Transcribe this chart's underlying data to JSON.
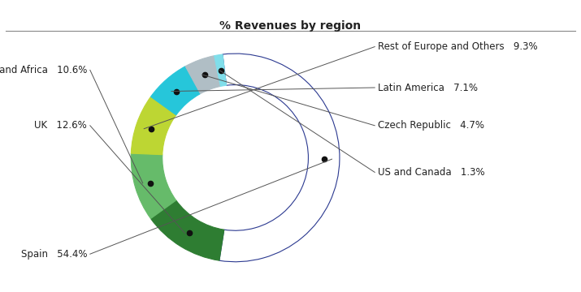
{
  "title": "% Revenues by region",
  "segments_ordered": [
    {
      "label": "Spain",
      "value": 54.4,
      "color": "#FFFFFF",
      "edge": "#2b3990"
    },
    {
      "label": "UK",
      "value": 12.6,
      "color": "#2e7d32",
      "edge": "#2e7d32"
    },
    {
      "label": "Middle East and Africa",
      "value": 10.6,
      "color": "#66bb6a",
      "edge": "#66bb6a"
    },
    {
      "label": "Rest of Europe and Others",
      "value": 9.3,
      "color": "#bdd633",
      "edge": "#bdd633"
    },
    {
      "label": "Latin America",
      "value": 7.1,
      "color": "#26c6da",
      "edge": "#26c6da"
    },
    {
      "label": "Czech Republic",
      "value": 4.7,
      "color": "#b0bec5",
      "edge": "#b0bec5"
    },
    {
      "label": "US and Canada",
      "value": 1.3,
      "color": "#80deea",
      "edge": "#80deea"
    }
  ],
  "start_angle": 97,
  "donut_width": 0.3,
  "title_fontsize": 10,
  "label_fontsize": 8.5,
  "title_color": "#222222",
  "label_color": "#222222",
  "line_color": "#555555",
  "dot_color": "#111111",
  "spain_edge": "#2b3990",
  "label_info": {
    "Spain": {
      "side": "left",
      "fy": 0.13
    },
    "Middle East and Africa": {
      "side": "left",
      "fy": 0.76
    },
    "UK": {
      "side": "left",
      "fy": 0.57
    },
    "Rest of Europe and Others": {
      "side": "right",
      "fy": 0.84
    },
    "Latin America": {
      "side": "right",
      "fy": 0.7
    },
    "Czech Republic": {
      "side": "right",
      "fy": 0.57
    },
    "US and Canada": {
      "side": "right",
      "fy": 0.41
    }
  },
  "pct_labels": {
    "Spain": "54.4%",
    "Middle East and Africa": "10.6%",
    "UK": "12.6%",
    "Rest of Europe and Others": "9.3%",
    "Latin America": "7.1%",
    "Czech Republic": "4.7%",
    "US and Canada": "1.3%"
  }
}
